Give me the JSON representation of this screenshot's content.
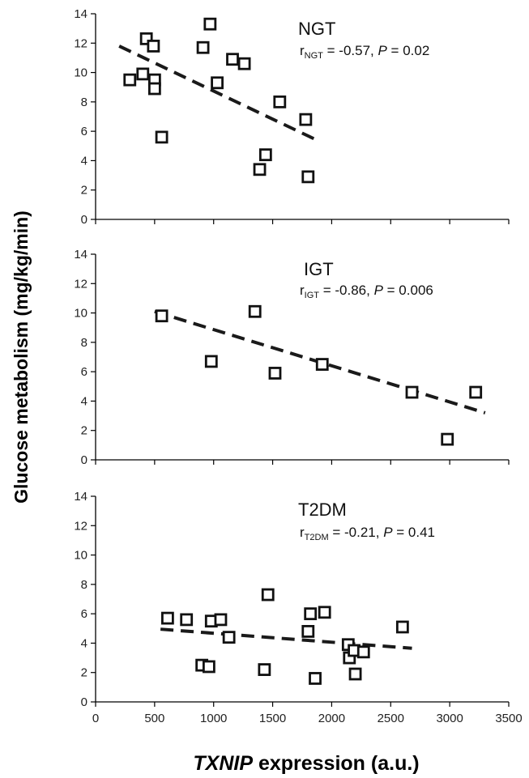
{
  "figure": {
    "ylabel": "Glucose metabolism (mg/kg/min)",
    "xlabel_italic": "TXNIP",
    "xlabel_rest": " expression (a.u.)"
  },
  "chart_data": [
    {
      "type": "scatter",
      "title": "NGT",
      "stat": {
        "r_sub": "NGT",
        "r_value": " = -0.57, ",
        "p_label": "P",
        "p_value": " = 0.02"
      },
      "xlim": [
        0,
        3500
      ],
      "ylim": [
        0,
        14
      ],
      "x_ticks": [],
      "y_ticks": [
        "0",
        "2",
        "4",
        "6",
        "8",
        "10",
        "12",
        "14"
      ],
      "points": [
        {
          "x": 290,
          "y": 9.5
        },
        {
          "x": 400,
          "y": 9.9
        },
        {
          "x": 430,
          "y": 12.3
        },
        {
          "x": 490,
          "y": 11.8
        },
        {
          "x": 500,
          "y": 9.5
        },
        {
          "x": 500,
          "y": 8.9
        },
        {
          "x": 560,
          "y": 5.6
        },
        {
          "x": 910,
          "y": 11.7
        },
        {
          "x": 970,
          "y": 13.3
        },
        {
          "x": 1030,
          "y": 9.3
        },
        {
          "x": 1160,
          "y": 10.9
        },
        {
          "x": 1260,
          "y": 10.6
        },
        {
          "x": 1390,
          "y": 3.4
        },
        {
          "x": 1440,
          "y": 4.4
        },
        {
          "x": 1560,
          "y": 8.0
        },
        {
          "x": 1780,
          "y": 6.8
        },
        {
          "x": 1800,
          "y": 2.9
        }
      ],
      "trend": {
        "x": [
          200,
          1900
        ],
        "y": [
          11.8,
          5.3
        ]
      }
    },
    {
      "type": "scatter",
      "title": "IGT",
      "stat": {
        "r_sub": "IGT",
        "r_value": " = -0.86, ",
        "p_label": "P",
        "p_value": " = 0.006"
      },
      "xlim": [
        0,
        3500
      ],
      "ylim": [
        0,
        14
      ],
      "x_ticks": [],
      "y_ticks": [
        "0",
        "2",
        "4",
        "6",
        "8",
        "10",
        "12",
        "14"
      ],
      "points": [
        {
          "x": 560,
          "y": 9.8
        },
        {
          "x": 980,
          "y": 6.7
        },
        {
          "x": 1350,
          "y": 10.1
        },
        {
          "x": 1520,
          "y": 5.9
        },
        {
          "x": 1920,
          "y": 6.5
        },
        {
          "x": 2680,
          "y": 4.6
        },
        {
          "x": 2980,
          "y": 1.4
        },
        {
          "x": 3220,
          "y": 4.6
        }
      ],
      "trend": {
        "x": [
          500,
          3300
        ],
        "y": [
          10.1,
          3.2
        ]
      }
    },
    {
      "type": "scatter",
      "title": "T2DM",
      "stat": {
        "r_sub": "T2DM",
        "r_value": " = -0.21, ",
        "p_label": "P",
        "p_value": " = 0.41"
      },
      "xlim": [
        0,
        3500
      ],
      "ylim": [
        0,
        14
      ],
      "x_ticks": [
        "0",
        "500",
        "1000",
        "1500",
        "2000",
        "2500",
        "3000",
        "3500"
      ],
      "y_ticks": [
        "0",
        "2",
        "4",
        "6",
        "8",
        "10",
        "12",
        "14"
      ],
      "points": [
        {
          "x": 610,
          "y": 5.7
        },
        {
          "x": 770,
          "y": 5.6
        },
        {
          "x": 900,
          "y": 2.5
        },
        {
          "x": 960,
          "y": 2.4
        },
        {
          "x": 980,
          "y": 5.5
        },
        {
          "x": 1060,
          "y": 5.6
        },
        {
          "x": 1130,
          "y": 4.4
        },
        {
          "x": 1430,
          "y": 2.2
        },
        {
          "x": 1460,
          "y": 7.3
        },
        {
          "x": 1800,
          "y": 4.8
        },
        {
          "x": 1820,
          "y": 6.0
        },
        {
          "x": 1860,
          "y": 1.6
        },
        {
          "x": 1940,
          "y": 6.1
        },
        {
          "x": 2140,
          "y": 3.9
        },
        {
          "x": 2150,
          "y": 3.0
        },
        {
          "x": 2190,
          "y": 3.5
        },
        {
          "x": 2200,
          "y": 1.9
        },
        {
          "x": 2270,
          "y": 3.4
        },
        {
          "x": 2600,
          "y": 5.1
        }
      ],
      "trend": {
        "x": [
          550,
          2680
        ],
        "y": [
          4.95,
          3.65
        ]
      }
    }
  ]
}
